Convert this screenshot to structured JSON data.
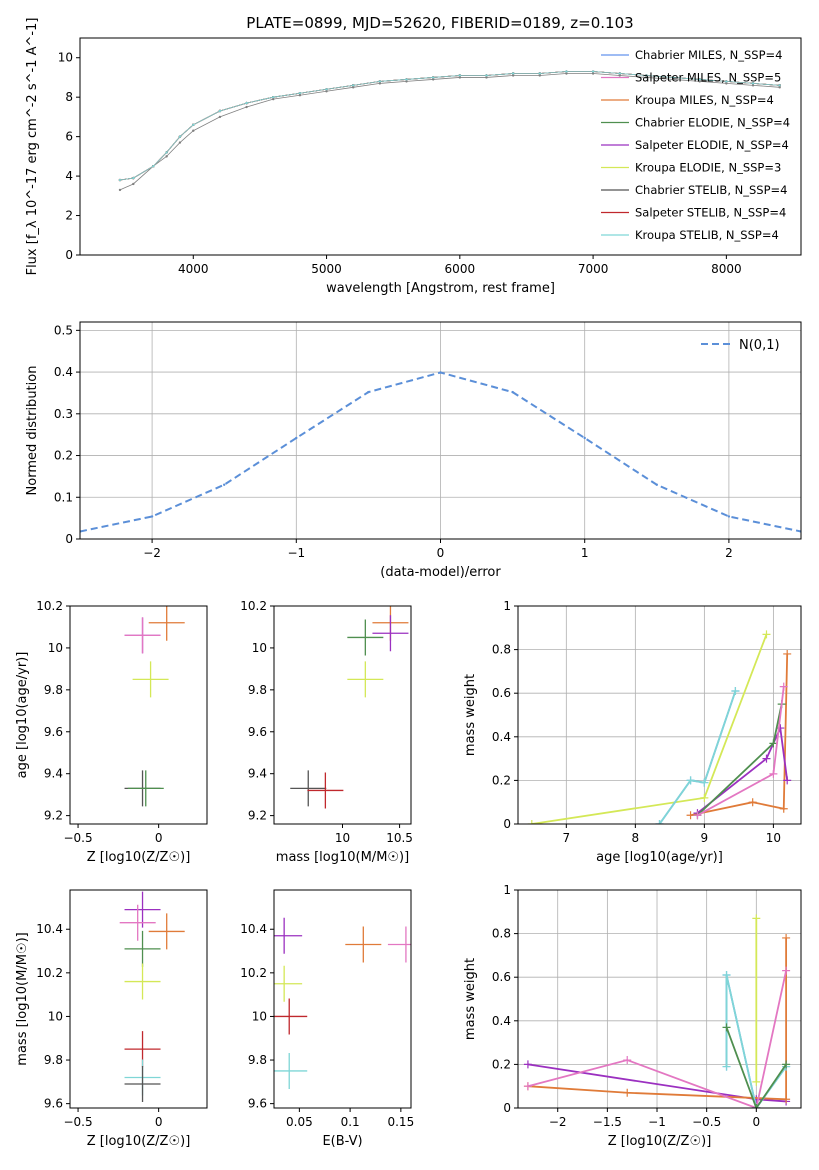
{
  "figure_title": "PLATE=0899, MJD=52620, FIBERID=0189, z=0.103",
  "chart_data": [
    {
      "id": "spectrum",
      "type": "line",
      "title": "PLATE=0899, MJD=52620, FIBERID=0189, z=0.103",
      "xlabel": "wavelength [Angstrom, rest frame]",
      "ylabel": "Flux [f_λ 10^-17 erg cm^-2 s^-1 A^-1]",
      "xlim": [
        3150,
        8560
      ],
      "ylim": [
        0,
        11
      ],
      "xticks": [
        4000,
        5000,
        6000,
        7000,
        8000
      ],
      "yticks": [
        0,
        2,
        4,
        6,
        8,
        10
      ],
      "grid": false,
      "legend_position": "right",
      "x": [
        3450,
        3550,
        3700,
        3800,
        3900,
        4000,
        4200,
        4400,
        4600,
        4800,
        5000,
        5200,
        5400,
        5600,
        5800,
        6000,
        6200,
        6400,
        6600,
        6800,
        7000,
        7200,
        7400,
        7600,
        7800,
        8000,
        8200,
        8400
      ],
      "series": [
        {
          "name": "data",
          "color": "#808080",
          "values": [
            3.3,
            3.6,
            4.5,
            5.0,
            5.7,
            6.3,
            7.0,
            7.5,
            7.9,
            8.1,
            8.3,
            8.5,
            8.7,
            8.8,
            8.9,
            9.0,
            9.0,
            9.1,
            9.1,
            9.2,
            9.2,
            9.1,
            9.0,
            8.9,
            8.8,
            8.7,
            8.6,
            8.5
          ]
        },
        {
          "name": "Chabrier MILES, N_SSP=4",
          "color": "#6495ed",
          "values": [
            3.8,
            3.9,
            4.5,
            5.2,
            6.0,
            6.6,
            7.3,
            7.7,
            8.0,
            8.2,
            8.4,
            8.6,
            8.8,
            8.9,
            9.0,
            9.1,
            9.1,
            9.2,
            9.2,
            9.3,
            9.3,
            9.2,
            9.1,
            9.0,
            8.9,
            8.8,
            8.7,
            8.6
          ]
        },
        {
          "name": "Salpeter MILES, N_SSP=5",
          "color": "#e377c2",
          "values": [
            3.8,
            3.9,
            4.5,
            5.2,
            6.0,
            6.6,
            7.3,
            7.7,
            8.0,
            8.2,
            8.4,
            8.6,
            8.8,
            8.9,
            9.0,
            9.1,
            9.1,
            9.2,
            9.2,
            9.3,
            9.3,
            9.2,
            9.1,
            9.0,
            8.9,
            8.8,
            8.7,
            8.6
          ]
        },
        {
          "name": "Kroupa MILES, N_SSP=4",
          "color": "#e07b39",
          "values": [
            3.8,
            3.9,
            4.5,
            5.2,
            6.0,
            6.6,
            7.3,
            7.7,
            8.0,
            8.2,
            8.4,
            8.6,
            8.8,
            8.9,
            9.0,
            9.1,
            9.1,
            9.2,
            9.2,
            9.3,
            9.3,
            9.2,
            9.1,
            9.0,
            8.9,
            8.8,
            8.7,
            8.6
          ]
        },
        {
          "name": "Chabrier ELODIE, N_SSP=4",
          "color": "#4f8f4f",
          "values": [
            3.8,
            3.9,
            4.5,
            5.2,
            6.0,
            6.6,
            7.3,
            7.7,
            8.0,
            8.2,
            8.4,
            8.6,
            8.8,
            8.9,
            9.0,
            9.1,
            9.1,
            9.2,
            9.2,
            9.3,
            9.3,
            9.2,
            9.1,
            9.0,
            8.9,
            8.8,
            8.7,
            8.6
          ]
        },
        {
          "name": "Salpeter ELODIE, N_SSP=4",
          "color": "#9b30c0",
          "values": [
            3.8,
            3.9,
            4.5,
            5.2,
            6.0,
            6.6,
            7.3,
            7.7,
            8.0,
            8.2,
            8.4,
            8.6,
            8.8,
            8.9,
            9.0,
            9.1,
            9.1,
            9.2,
            9.2,
            9.3,
            9.3,
            9.2,
            9.1,
            9.0,
            8.9,
            8.8,
            8.7,
            8.6
          ]
        },
        {
          "name": "Kroupa ELODIE, N_SSP=3",
          "color": "#d4e857",
          "values": [
            3.8,
            3.9,
            4.5,
            5.2,
            6.0,
            6.6,
            7.3,
            7.7,
            8.0,
            8.2,
            8.4,
            8.6,
            8.8,
            8.9,
            9.0,
            9.1,
            9.1,
            9.2,
            9.2,
            9.3,
            9.3,
            9.2,
            9.1,
            9.0,
            8.9,
            8.8,
            8.7,
            8.6
          ]
        },
        {
          "name": "Chabrier STELIB, N_SSP=4",
          "color": "#555555",
          "values": [
            3.8,
            3.9,
            4.5,
            5.2,
            6.0,
            6.6,
            7.3,
            7.7,
            8.0,
            8.2,
            8.4,
            8.6,
            8.8,
            8.9,
            9.0,
            9.1,
            9.1,
            9.2,
            9.2,
            9.3,
            9.3,
            9.2,
            9.1,
            9.0,
            8.9,
            8.8,
            8.7,
            8.6
          ]
        },
        {
          "name": "Salpeter STELIB, N_SSP=4",
          "color": "#c0282d",
          "values": [
            3.8,
            3.9,
            4.5,
            5.2,
            6.0,
            6.6,
            7.3,
            7.7,
            8.0,
            8.2,
            8.4,
            8.6,
            8.8,
            8.9,
            9.0,
            9.1,
            9.1,
            9.2,
            9.2,
            9.3,
            9.3,
            9.2,
            9.1,
            9.0,
            8.9,
            8.8,
            8.7,
            8.6
          ]
        },
        {
          "name": "Kroupa STELIB, N_SSP=4",
          "color": "#7fd6d6",
          "values": [
            3.8,
            3.9,
            4.5,
            5.2,
            6.0,
            6.6,
            7.3,
            7.7,
            8.0,
            8.2,
            8.4,
            8.6,
            8.8,
            8.9,
            9.0,
            9.1,
            9.1,
            9.2,
            9.2,
            9.3,
            9.3,
            9.2,
            9.1,
            9.0,
            8.9,
            8.8,
            8.7,
            8.6
          ]
        }
      ]
    },
    {
      "id": "residuals",
      "type": "line",
      "xlabel": "(data-model)/error",
      "ylabel": "Normed distribution",
      "xlim": [
        -2.5,
        2.5
      ],
      "ylim": [
        0,
        0.52
      ],
      "xticks": [
        -2,
        -1,
        0,
        1,
        2
      ],
      "yticks": [
        0.0,
        0.1,
        0.2,
        0.3,
        0.4,
        0.5
      ],
      "grid": true,
      "legend_position": "top-right",
      "legend": [
        "N(0,1)"
      ],
      "x": [
        -2.5,
        -2.0,
        -1.5,
        -1.0,
        -0.5,
        0.0,
        0.5,
        1.0,
        1.5,
        2.0,
        2.5
      ],
      "series": [
        {
          "name": "N(0,1)",
          "color": "#5b8fd8",
          "values": [
            0.018,
            0.054,
            0.13,
            0.242,
            0.352,
            0.399,
            0.352,
            0.242,
            0.13,
            0.054,
            0.018
          ]
        }
      ]
    },
    {
      "id": "age_vs_Z",
      "type": "scatter",
      "xlabel": "Z [log10(Z/Z☉)]",
      "ylabel": "age [log10(age/yr)]",
      "xlim": [
        -0.55,
        0.3
      ],
      "ylim": [
        9.16,
        10.2
      ],
      "xticks": [
        -0.5,
        0.0
      ],
      "yticks": [
        9.2,
        9.4,
        9.6,
        9.8,
        10.0,
        10.2
      ],
      "grid": false,
      "points": [
        {
          "x": -0.1,
          "y": 10.06,
          "color": "#9b30c0"
        },
        {
          "x": 0.05,
          "y": 10.12,
          "color": "#e07b39"
        },
        {
          "x": -0.05,
          "y": 9.85,
          "color": "#d4e857"
        },
        {
          "x": -0.1,
          "y": 9.33,
          "color": "#555555"
        },
        {
          "x": -0.1,
          "y": 10.06,
          "color": "#e377c2"
        },
        {
          "x": -0.08,
          "y": 9.33,
          "color": "#4f8f4f"
        }
      ]
    },
    {
      "id": "age_vs_mass",
      "type": "scatter",
      "xlabel": "mass [log10(M/M☉)]",
      "ylabel": "",
      "xlim": [
        9.4,
        10.6
      ],
      "ylim": [
        9.16,
        10.2
      ],
      "xticks": [
        10.0,
        10.5
      ],
      "yticks": [
        9.2,
        9.4,
        9.6,
        9.8,
        10.0,
        10.2
      ],
      "grid": false,
      "points": [
        {
          "x": 10.42,
          "y": 10.12,
          "color": "#e07b39"
        },
        {
          "x": 10.42,
          "y": 10.07,
          "color": "#9b30c0"
        },
        {
          "x": 10.2,
          "y": 9.85,
          "color": "#d4e857"
        },
        {
          "x": 9.7,
          "y": 9.33,
          "color": "#555555"
        },
        {
          "x": 9.85,
          "y": 9.32,
          "color": "#c0282d"
        },
        {
          "x": 10.2,
          "y": 10.05,
          "color": "#4f8f4f"
        }
      ]
    },
    {
      "id": "weight_vs_age",
      "type": "line",
      "xlabel": "age [log10(age/yr)]",
      "ylabel": "mass weight",
      "xlim": [
        6.3,
        10.4
      ],
      "ylim": [
        0,
        1.0
      ],
      "xticks": [
        7,
        8,
        9,
        10
      ],
      "yticks": [
        0.0,
        0.2,
        0.4,
        0.6,
        0.8,
        1.0
      ],
      "grid": true,
      "series": [
        {
          "name": "Kroupa ELODIE",
          "color": "#d4e857",
          "x": [
            6.5,
            9.0,
            9.9
          ],
          "values": [
            0.0,
            0.12,
            0.87
          ]
        },
        {
          "name": "Chabrier MILES",
          "color": "#6495ed",
          "x": [
            8.35,
            8.8,
            9.0,
            9.45
          ],
          "values": [
            0.0,
            0.2,
            0.19,
            0.61
          ]
        },
        {
          "name": "Kroupa STELIB",
          "color": "#7fd6d6",
          "x": [
            8.35,
            8.8,
            9.0,
            9.45
          ],
          "values": [
            0.0,
            0.2,
            0.19,
            0.61
          ]
        },
        {
          "name": "Kroupa MILES",
          "color": "#e07b39",
          "x": [
            8.8,
            9.7,
            10.15,
            10.2
          ],
          "values": [
            0.04,
            0.1,
            0.07,
            0.78
          ]
        },
        {
          "name": "Salpeter ELODIE",
          "color": "#9b30c0",
          "x": [
            8.9,
            9.9,
            10.1,
            10.2
          ],
          "values": [
            0.05,
            0.3,
            0.44,
            0.2
          ]
        },
        {
          "name": "Chabrier ELODIE",
          "color": "#4f8f4f",
          "x": [
            8.9,
            10.0,
            10.12
          ],
          "values": [
            0.04,
            0.37,
            0.55
          ]
        },
        {
          "name": "Salpeter MILES",
          "color": "#e377c2",
          "x": [
            8.9,
            10.0,
            10.15
          ],
          "values": [
            0.04,
            0.23,
            0.63
          ]
        }
      ]
    },
    {
      "id": "mass_vs_Z",
      "type": "scatter",
      "xlabel": "Z [log10(Z/Z☉)]",
      "ylabel": "mass [log10(M/M☉)]",
      "xlim": [
        -0.55,
        0.3
      ],
      "ylim": [
        9.58,
        10.58
      ],
      "xticks": [
        -0.5,
        0.0
      ],
      "yticks": [
        9.6,
        9.8,
        10.0,
        10.2,
        10.4
      ],
      "grid": false,
      "points": [
        {
          "x": -0.1,
          "y": 10.49,
          "color": "#9b30c0"
        },
        {
          "x": -0.13,
          "y": 10.43,
          "color": "#e377c2"
        },
        {
          "x": 0.05,
          "y": 10.39,
          "color": "#e07b39"
        },
        {
          "x": -0.1,
          "y": 10.31,
          "color": "#4f8f4f"
        },
        {
          "x": -0.1,
          "y": 10.16,
          "color": "#d4e857"
        },
        {
          "x": -0.1,
          "y": 9.85,
          "color": "#c0282d"
        },
        {
          "x": -0.1,
          "y": 9.72,
          "color": "#7fd6d6"
        },
        {
          "x": -0.1,
          "y": 9.69,
          "color": "#555555"
        }
      ]
    },
    {
      "id": "mass_vs_EBV",
      "type": "scatter",
      "xlabel": "E(B-V)",
      "ylabel": "",
      "xlim": [
        0.025,
        0.16
      ],
      "ylim": [
        9.58,
        10.58
      ],
      "xticks": [
        0.05,
        0.1,
        0.15
      ],
      "yticks": [
        9.6,
        9.8,
        10.0,
        10.2,
        10.4
      ],
      "grid": false,
      "points": [
        {
          "x": 0.035,
          "y": 10.37,
          "color": "#9b30c0"
        },
        {
          "x": 0.113,
          "y": 10.33,
          "color": "#e07b39"
        },
        {
          "x": 0.155,
          "y": 10.33,
          "color": "#e377c2"
        },
        {
          "x": 0.035,
          "y": 10.15,
          "color": "#d4e857"
        },
        {
          "x": 0.04,
          "y": 10.0,
          "color": "#c0282d"
        },
        {
          "x": 0.04,
          "y": 9.75,
          "color": "#7fd6d6"
        }
      ]
    },
    {
      "id": "weight_vs_Z",
      "type": "line",
      "xlabel": "Z [log10(Z/Z☉)]",
      "ylabel": "mass weight",
      "xlim": [
        -2.4,
        0.45
      ],
      "ylim": [
        0,
        1.0
      ],
      "xticks": [
        -2.0,
        -1.5,
        -1.0,
        -0.5,
        0.0
      ],
      "yticks": [
        0.0,
        0.2,
        0.4,
        0.6,
        0.8,
        1.0
      ],
      "grid": true,
      "series": [
        {
          "name": "Salpeter ELODIE",
          "color": "#9b30c0",
          "x": [
            -2.3,
            0.0,
            0.3
          ],
          "values": [
            0.2,
            0.04,
            0.03
          ]
        },
        {
          "name": "Kroupa MILES",
          "color": "#e07b39",
          "x": [
            -2.3,
            -1.3,
            0.3,
            0.3
          ],
          "values": [
            0.1,
            0.07,
            0.04,
            0.78
          ]
        },
        {
          "name": "Salpeter MILES",
          "color": "#e377c2",
          "x": [
            -2.3,
            -1.3,
            0.0,
            0.3
          ],
          "values": [
            0.1,
            0.22,
            0.0,
            0.63
          ]
        },
        {
          "name": "Chabrier MILES",
          "color": "#6495ed",
          "x": [
            -0.3,
            -0.3,
            0.0,
            0.3
          ],
          "values": [
            0.19,
            0.61,
            0.0,
            0.19
          ]
        },
        {
          "name": "Kroupa STELIB",
          "color": "#7fd6d6",
          "x": [
            -0.3,
            -0.3,
            0.0,
            0.3
          ],
          "values": [
            0.19,
            0.61,
            0.0,
            0.19
          ]
        },
        {
          "name": "Chabrier ELODIE",
          "color": "#4f8f4f",
          "x": [
            -0.3,
            0.0,
            0.3
          ],
          "values": [
            0.37,
            0.0,
            0.2
          ]
        },
        {
          "name": "Kroupa ELODIE",
          "color": "#d4e857",
          "x": [
            0.0,
            0.0
          ],
          "values": [
            0.87,
            0.12
          ]
        }
      ]
    }
  ]
}
